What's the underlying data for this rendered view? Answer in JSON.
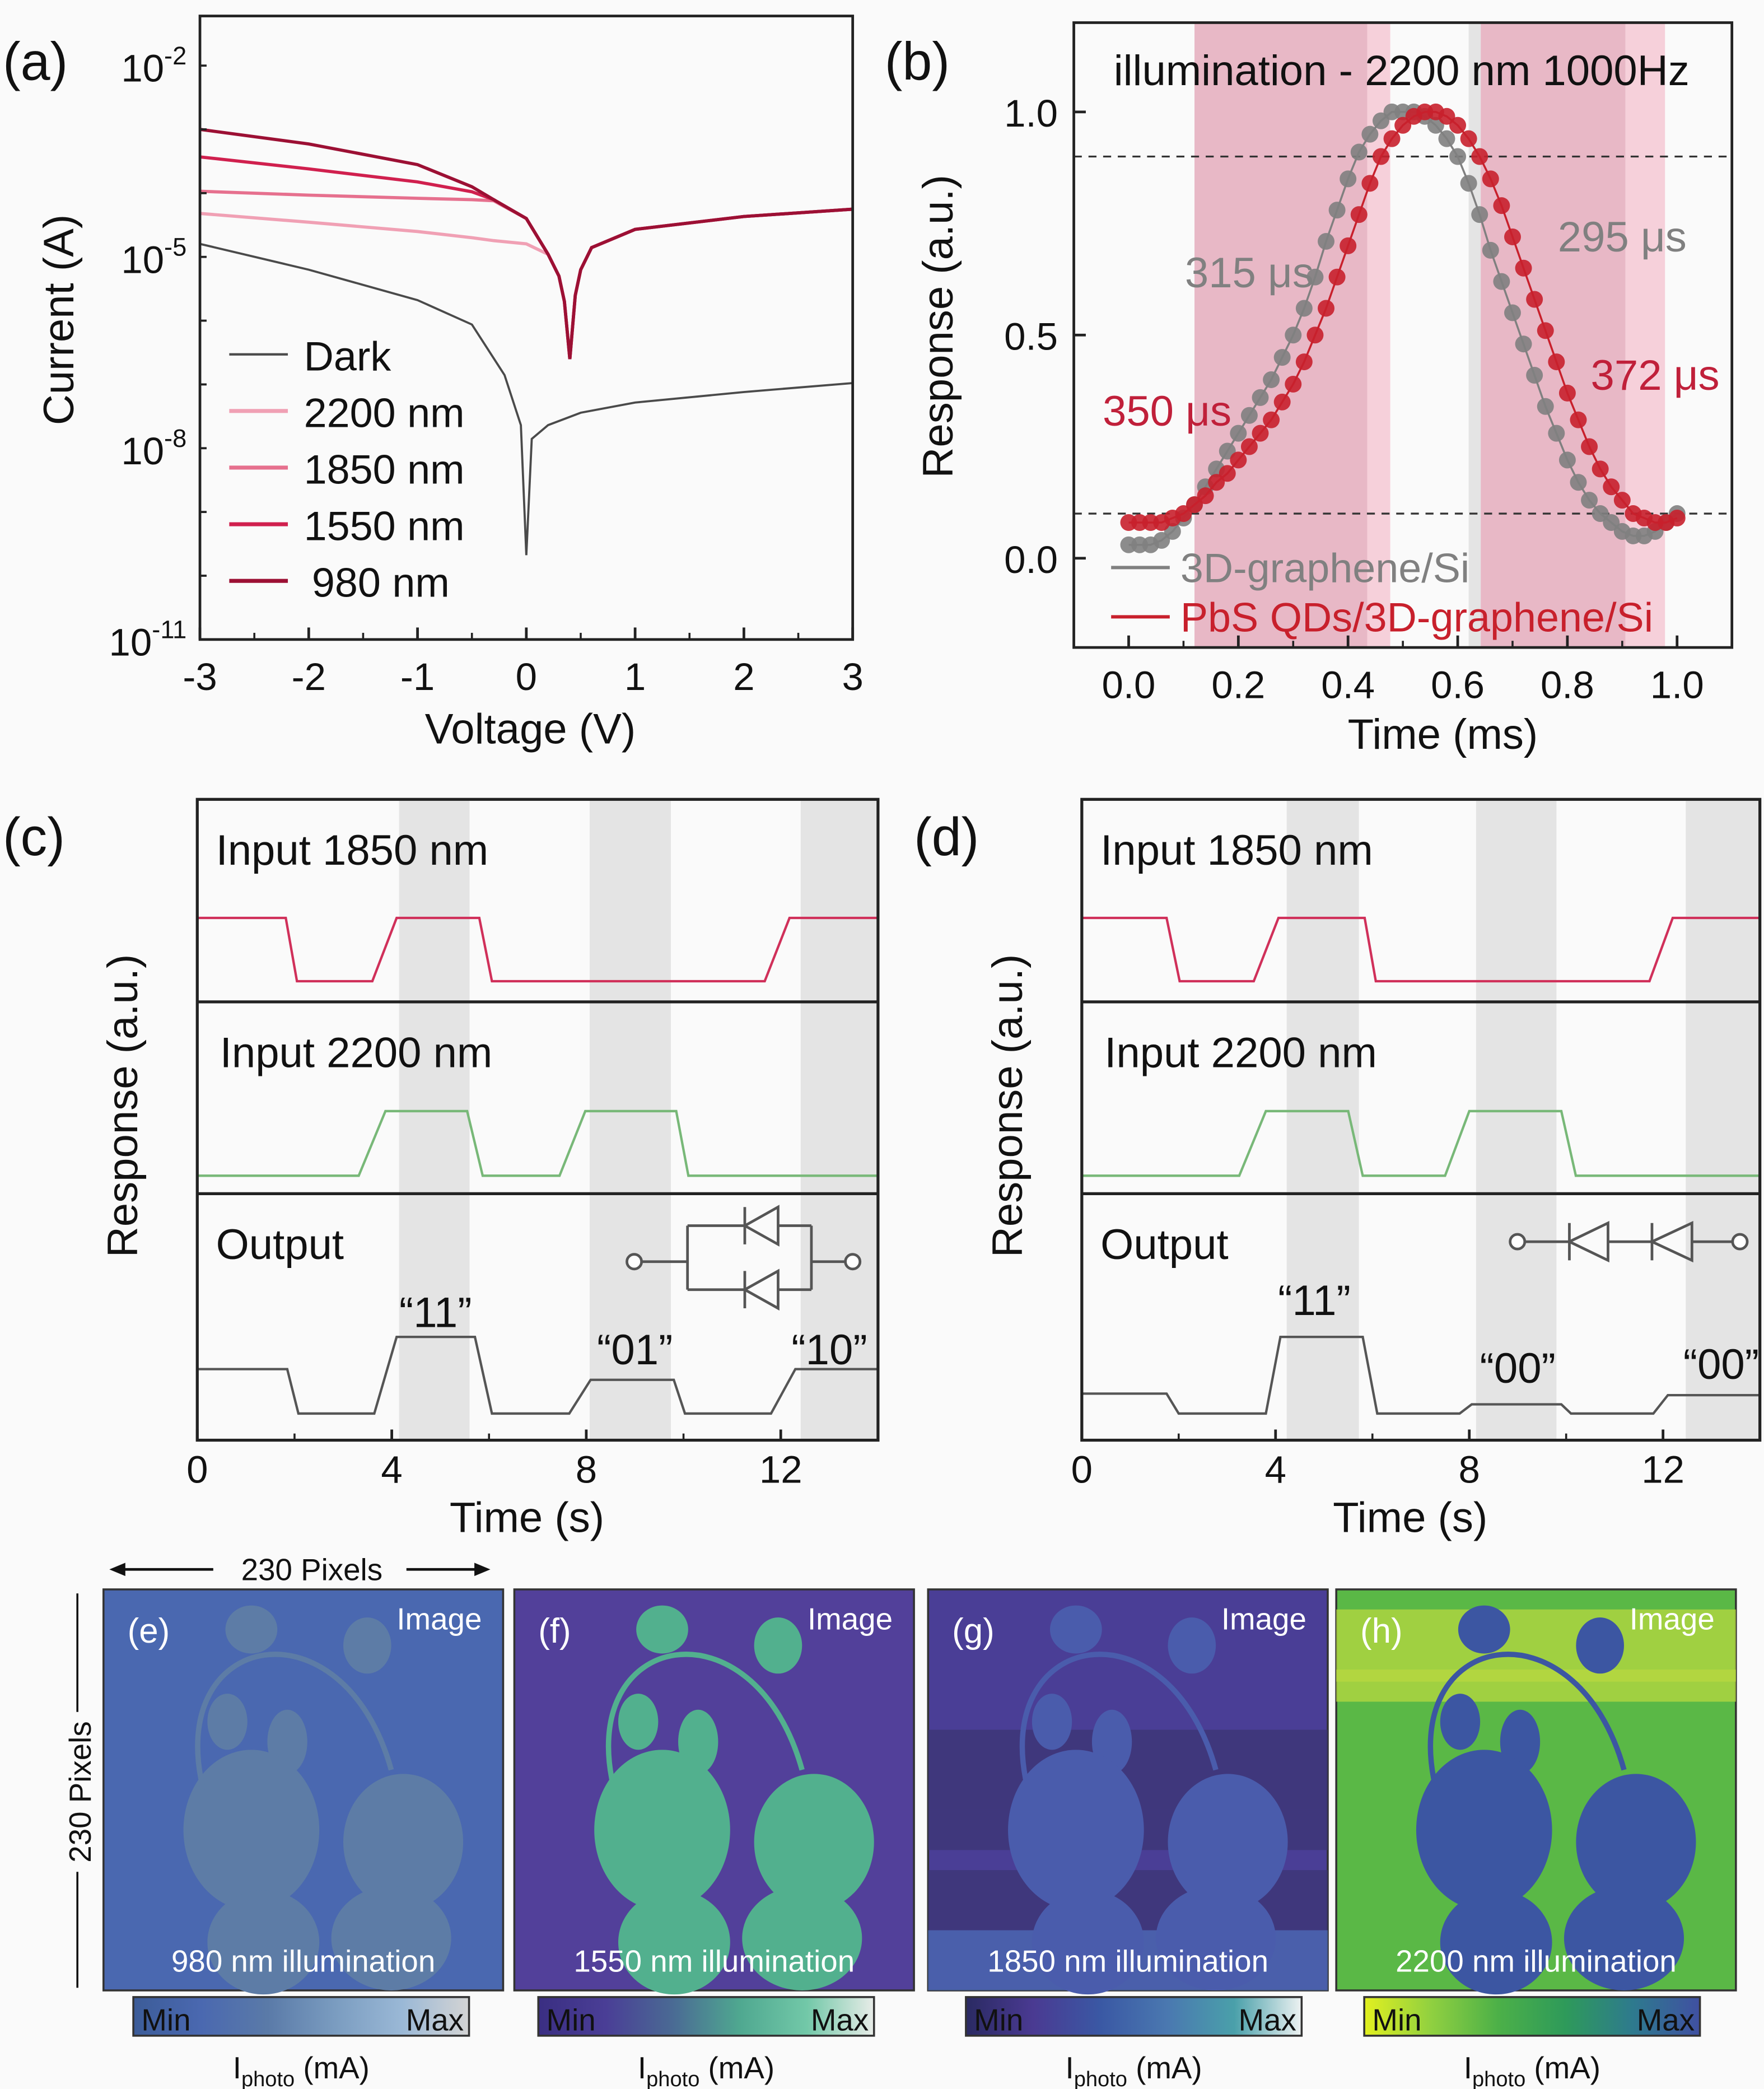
{
  "panel_labels": {
    "a": "(a)",
    "b": "(b)",
    "c": "(c)",
    "d": "(d)"
  },
  "chart_data": [
    {
      "id": "a",
      "type": "line",
      "xlabel": "Voltage (V)",
      "ylabel": "Current (A)",
      "xlim": [
        -3,
        3
      ],
      "ylim": [
        1e-11,
        0.06
      ],
      "yscale": "log",
      "xticks": [
        -3,
        -2,
        -1,
        0,
        1,
        2,
        3
      ],
      "yticks": [
        {
          "base": "10",
          "exp": "-2",
          "value": 0.01
        },
        {
          "base": "10",
          "exp": "-5",
          "value": 1e-05
        },
        {
          "base": "10",
          "exp": "-8",
          "value": 1e-08
        },
        {
          "base": "10",
          "exp": "-11",
          "value": 1e-11
        }
      ],
      "legend_position": "bottom-left",
      "series": [
        {
          "name": "Dark",
          "color": "#4a4a4a",
          "points": [
            [
              -3,
              1.6e-05
            ],
            [
              -2,
              6.3e-06
            ],
            [
              -1,
              2.1e-06
            ],
            [
              -0.5,
              8.7e-07
            ],
            [
              -0.2,
              1.4e-07
            ],
            [
              -0.05,
              2.3e-08
            ],
            [
              0,
              2.1e-10
            ],
            [
              0.05,
              1.4e-08
            ],
            [
              0.2,
              2.3e-08
            ],
            [
              0.5,
              3.6e-08
            ],
            [
              1,
              5.2e-08
            ],
            [
              2,
              7.6e-08
            ],
            [
              3,
              1.05e-07
            ]
          ]
        },
        {
          "name": "2200 nm",
          "color": "#f0a0b4",
          "points": [
            [
              -3,
              4.8e-05
            ],
            [
              -2,
              3.5e-05
            ],
            [
              -1,
              2.5e-05
            ],
            [
              -0.5,
              2e-05
            ],
            [
              -0.3,
              1.8e-05
            ],
            [
              0,
              1.6e-05
            ],
            [
              0.2,
              1.1e-05
            ],
            [
              0.3,
              5e-06
            ],
            [
              0.35,
              2e-06
            ],
            [
              0.4,
              2.5e-07
            ],
            [
              0.45,
              2.5e-06
            ],
            [
              0.5,
              6.3e-06
            ],
            [
              0.6,
              1.4e-05
            ],
            [
              1,
              2.7e-05
            ],
            [
              2,
              4.3e-05
            ],
            [
              3,
              5.6e-05
            ]
          ]
        },
        {
          "name": "1850 nm",
          "color": "#e6708e",
          "points": [
            [
              -3,
              0.000107
            ],
            [
              -2,
              9.3e-05
            ],
            [
              -1,
              8.3e-05
            ],
            [
              -0.5,
              7.9e-05
            ],
            [
              -0.3,
              7.6e-05
            ],
            [
              0,
              4e-05
            ],
            [
              0.2,
              1.1e-05
            ],
            [
              0.3,
              5e-06
            ],
            [
              0.35,
              2e-06
            ],
            [
              0.4,
              2.5e-07
            ],
            [
              0.45,
              2.5e-06
            ],
            [
              0.5,
              6.3e-06
            ],
            [
              0.6,
              1.4e-05
            ],
            [
              1,
              2.7e-05
            ],
            [
              2,
              4.3e-05
            ],
            [
              3,
              5.6e-05
            ]
          ]
        },
        {
          "name": "1550 nm",
          "color": "#d0204e",
          "points": [
            [
              -3,
              0.00037
            ],
            [
              -2,
              0.00024
            ],
            [
              -1,
              0.00015
            ],
            [
              -0.5,
              0.000105
            ],
            [
              -0.3,
              7.9e-05
            ],
            [
              0,
              4e-05
            ],
            [
              0.2,
              1.1e-05
            ],
            [
              0.3,
              5e-06
            ],
            [
              0.35,
              2e-06
            ],
            [
              0.4,
              2.5e-07
            ],
            [
              0.45,
              2.5e-06
            ],
            [
              0.5,
              6.3e-06
            ],
            [
              0.6,
              1.4e-05
            ],
            [
              1,
              2.7e-05
            ],
            [
              2,
              4.3e-05
            ],
            [
              3,
              5.6e-05
            ]
          ]
        },
        {
          "name": "980 nm",
          "color": "#9c1034",
          "points": [
            [
              -3,
              0.001
            ],
            [
              -2,
              0.00059
            ],
            [
              -1,
              0.00028
            ],
            [
              -0.5,
              0.000126
            ],
            [
              -0.3,
              7.9e-05
            ],
            [
              0,
              4e-05
            ],
            [
              0.2,
              1.1e-05
            ],
            [
              0.3,
              5e-06
            ],
            [
              0.35,
              2e-06
            ],
            [
              0.4,
              2.5e-07
            ],
            [
              0.45,
              2.5e-06
            ],
            [
              0.5,
              6.3e-06
            ],
            [
              0.6,
              1.4e-05
            ],
            [
              1,
              2.7e-05
            ],
            [
              2,
              4.3e-05
            ],
            [
              3,
              5.6e-05
            ]
          ]
        }
      ]
    },
    {
      "id": "b",
      "type": "scatter",
      "title": "illumination - 2200 nm 1000Hz",
      "xlabel": "Time (ms)",
      "ylabel": "Response (a.u.)",
      "xlim": [
        -0.1,
        1.1
      ],
      "ylim": [
        -0.2,
        1.2
      ],
      "xticks": [
        "0.0",
        "0.2",
        "0.4",
        "0.6",
        "0.8",
        "1.0"
      ],
      "yticks": [
        "0.0",
        "0.5",
        "1.0"
      ],
      "reference_lines_y": [
        0.1,
        0.9
      ],
      "shaded_regions": [
        {
          "from": 0.12,
          "to": 0.435,
          "color": "#e8b8c6"
        },
        {
          "from": 0.435,
          "to": 0.477,
          "color": "#f6d0da"
        },
        {
          "from": 0.62,
          "to": 0.642,
          "color": "#e4e4e4"
        },
        {
          "from": 0.642,
          "to": 0.906,
          "color": "#e8b8c6"
        },
        {
          "from": 0.906,
          "to": 0.978,
          "color": "#f6d0da"
        }
      ],
      "legend_position": "bottom-left",
      "x": [
        0,
        0.02,
        0.04,
        0.06,
        0.08,
        0.1,
        0.12,
        0.14,
        0.16,
        0.18,
        0.2,
        0.22,
        0.24,
        0.26,
        0.28,
        0.3,
        0.32,
        0.34,
        0.36,
        0.38,
        0.4,
        0.42,
        0.44,
        0.46,
        0.48,
        0.5,
        0.52,
        0.54,
        0.56,
        0.58,
        0.6,
        0.62,
        0.64,
        0.66,
        0.68,
        0.7,
        0.72,
        0.74,
        0.76,
        0.78,
        0.8,
        0.82,
        0.84,
        0.86,
        0.88,
        0.9,
        0.92,
        0.94,
        0.96,
        0.98,
        1.0
      ],
      "series": [
        {
          "name": "3D-graphene/Si",
          "color": "#808080",
          "values": [
            0.03,
            0.03,
            0.03,
            0.04,
            0.06,
            0.09,
            0.12,
            0.16,
            0.2,
            0.24,
            0.28,
            0.32,
            0.36,
            0.4,
            0.45,
            0.5,
            0.56,
            0.63,
            0.71,
            0.78,
            0.85,
            0.91,
            0.95,
            0.98,
            1.0,
            1.0,
            1.0,
            0.99,
            0.97,
            0.94,
            0.9,
            0.84,
            0.77,
            0.69,
            0.62,
            0.55,
            0.48,
            0.41,
            0.34,
            0.28,
            0.22,
            0.17,
            0.13,
            0.1,
            0.08,
            0.06,
            0.05,
            0.05,
            0.06,
            0.08,
            0.1
          ]
        },
        {
          "name": "PbS QDs/3D-graphene/Si",
          "color": "#c8202c",
          "values": [
            0.08,
            0.08,
            0.08,
            0.08,
            0.09,
            0.1,
            0.12,
            0.14,
            0.17,
            0.19,
            0.22,
            0.25,
            0.28,
            0.31,
            0.35,
            0.39,
            0.44,
            0.5,
            0.56,
            0.63,
            0.7,
            0.77,
            0.84,
            0.9,
            0.94,
            0.97,
            0.99,
            1.0,
            1.0,
            0.99,
            0.97,
            0.94,
            0.9,
            0.85,
            0.79,
            0.72,
            0.65,
            0.58,
            0.51,
            0.44,
            0.37,
            0.31,
            0.25,
            0.2,
            0.16,
            0.13,
            0.1,
            0.09,
            0.08,
            0.08,
            0.09
          ]
        }
      ],
      "annotations": [
        {
          "text": "315 μs",
          "color": "#808080",
          "x": 0.22,
          "y": 0.64
        },
        {
          "text": "295 μs",
          "color": "#808080",
          "x": 0.9,
          "y": 0.72
        },
        {
          "text": "350 μs",
          "color": "#c0203a",
          "x": 0.07,
          "y": 0.33
        },
        {
          "text": "372 μs",
          "color": "#c0203a",
          "x": 0.96,
          "y": 0.41
        }
      ]
    },
    {
      "id": "c",
      "type": "line",
      "xlabel": "Time (s)",
      "ylabel": "Response (a.u.)",
      "xlim": [
        0,
        14
      ],
      "xticks": [
        0,
        4,
        8,
        12
      ],
      "shaded_regions": [
        [
          4.15,
          5.6
        ],
        [
          8.07,
          9.74
        ],
        [
          12.41,
          14
        ]
      ],
      "rows": [
        {
          "label": "Input 1850 nm",
          "color": "#d0305a",
          "points": [
            [
              0,
              1
            ],
            [
              1.82,
              1
            ],
            [
              2.05,
              0
            ],
            [
              3.6,
              0
            ],
            [
              4.1,
              1
            ],
            [
              5.8,
              1
            ],
            [
              6.06,
              0
            ],
            [
              11.67,
              0
            ],
            [
              12.18,
              1
            ],
            [
              14,
              1
            ]
          ]
        },
        {
          "label": "Input 2200 nm",
          "color": "#78b878",
          "points": [
            [
              0,
              0
            ],
            [
              3.32,
              0
            ],
            [
              3.87,
              1
            ],
            [
              5.55,
              1
            ],
            [
              5.87,
              0
            ],
            [
              7.45,
              0
            ],
            [
              7.98,
              1
            ],
            [
              9.85,
              1
            ],
            [
              10.1,
              0
            ],
            [
              14,
              0
            ]
          ]
        },
        {
          "label": "Output",
          "color": "#555555",
          "points": [
            [
              0,
              0.58
            ],
            [
              1.85,
              0.58
            ],
            [
              2.08,
              0
            ],
            [
              3.64,
              0
            ],
            [
              4.1,
              1
            ],
            [
              5.71,
              1
            ],
            [
              6.06,
              0
            ],
            [
              7.65,
              0
            ],
            [
              8.09,
              0.44
            ],
            [
              9.8,
              0.44
            ],
            [
              10.03,
              0
            ],
            [
              11.8,
              0
            ],
            [
              12.3,
              0.58
            ],
            [
              14,
              0.58
            ]
          ]
        }
      ],
      "annotations": [
        {
          "text": "“11”",
          "x": 4.9
        },
        {
          "text": "“01”",
          "x": 9.0
        },
        {
          "text": "“10”",
          "x": 13.0
        }
      ],
      "circuit": "parallel-antiparallel-diodes"
    },
    {
      "id": "d",
      "type": "line",
      "xlabel": "Time (s)",
      "ylabel": "Response (a.u.)",
      "xlim": [
        0,
        14
      ],
      "xticks": [
        0,
        4,
        8,
        12
      ],
      "shaded_regions": [
        [
          4.23,
          5.72
        ],
        [
          8.14,
          9.8
        ],
        [
          12.47,
          14
        ]
      ],
      "rows": [
        {
          "label": "Input 1850 nm",
          "color": "#d0305a",
          "points": [
            [
              0,
              1
            ],
            [
              1.75,
              1
            ],
            [
              2.02,
              0
            ],
            [
              3.55,
              0
            ],
            [
              4.06,
              1
            ],
            [
              5.84,
              1
            ],
            [
              6.07,
              0
            ],
            [
              11.72,
              0
            ],
            [
              12.2,
              1
            ],
            [
              14,
              1
            ]
          ]
        },
        {
          "label": "Input 2200 nm",
          "color": "#78b878",
          "points": [
            [
              0,
              0
            ],
            [
              3.25,
              0
            ],
            [
              3.8,
              1
            ],
            [
              5.5,
              1
            ],
            [
              5.8,
              0
            ],
            [
              7.5,
              0
            ],
            [
              8.0,
              1
            ],
            [
              9.9,
              1
            ],
            [
              10.2,
              0
            ],
            [
              14,
              0
            ]
          ]
        },
        {
          "label": "Output",
          "color": "#555555",
          "points": [
            [
              0,
              0.26
            ],
            [
              1.75,
              0.26
            ],
            [
              2.0,
              0
            ],
            [
              3.8,
              0
            ],
            [
              4.1,
              1
            ],
            [
              5.8,
              1
            ],
            [
              6.1,
              0
            ],
            [
              7.8,
              0
            ],
            [
              8.05,
              0.12
            ],
            [
              9.9,
              0.12
            ],
            [
              10.1,
              0
            ],
            [
              11.8,
              0
            ],
            [
              12.1,
              0.24
            ],
            [
              14,
              0.24
            ]
          ]
        }
      ],
      "annotations": [
        {
          "text": "“11”",
          "x": 4.8
        },
        {
          "text": "“00”",
          "x": 9.0
        },
        {
          "text": "“00”",
          "x": 13.2
        }
      ],
      "circuit": "series-back-to-back-diodes"
    }
  ],
  "images": {
    "width_label": "230 Pixels",
    "height_label": "230 Pixels",
    "panels": [
      {
        "label": "(e)",
        "tag": "Image",
        "caption": "980 nm illumination",
        "min": "Min",
        "max": "Max",
        "colorbar_label": "I",
        "colorbar_sub": "photo",
        "colorbar_unit": " (mA)",
        "bg": "#4a68b0",
        "shape": "#5d7ca6",
        "colormap": [
          "#3c5c98",
          "#4a68b0",
          "#5a7aa8",
          "#7a9cc0",
          "#9ab8d6",
          "#d4d4d4"
        ]
      },
      {
        "label": "(f)",
        "tag": "Image",
        "caption": "1550 nm illumination",
        "min": "Min",
        "max": "Max",
        "colorbar_label": "I",
        "colorbar_sub": "photo",
        "colorbar_unit": " (mA)",
        "bg": "#52409a",
        "shape": "#52b08e",
        "colormap": [
          "#3a2e82",
          "#4a3e96",
          "#4a6a94",
          "#4fa890",
          "#72c8a8",
          "#e8ece8"
        ]
      },
      {
        "label": "(g)",
        "tag": "Image",
        "caption": "1850 nm illumination",
        "min": "Min",
        "max": "Max",
        "colorbar_label": "I",
        "colorbar_sub": "photo",
        "colorbar_unit": " (mA)",
        "bg": "#4a3e96",
        "shape": "#4a5cac",
        "colormap": [
          "#2a2a62",
          "#4a3a92",
          "#3a58a4",
          "#4a78b0",
          "#4aa0aa",
          "#eef2f2"
        ]
      },
      {
        "label": "(h)",
        "tag": "Image",
        "caption": "2200 nm illumination",
        "min": "Min",
        "max": "Max",
        "colorbar_label": "I",
        "colorbar_sub": "photo",
        "colorbar_unit": " (mA)",
        "bg": "#5ab846",
        "shape": "#3c56a2",
        "colormap": [
          "#e2f020",
          "#90d040",
          "#4cb048",
          "#2e9a5a",
          "#2e7a8e",
          "#4050a2"
        ]
      }
    ]
  }
}
